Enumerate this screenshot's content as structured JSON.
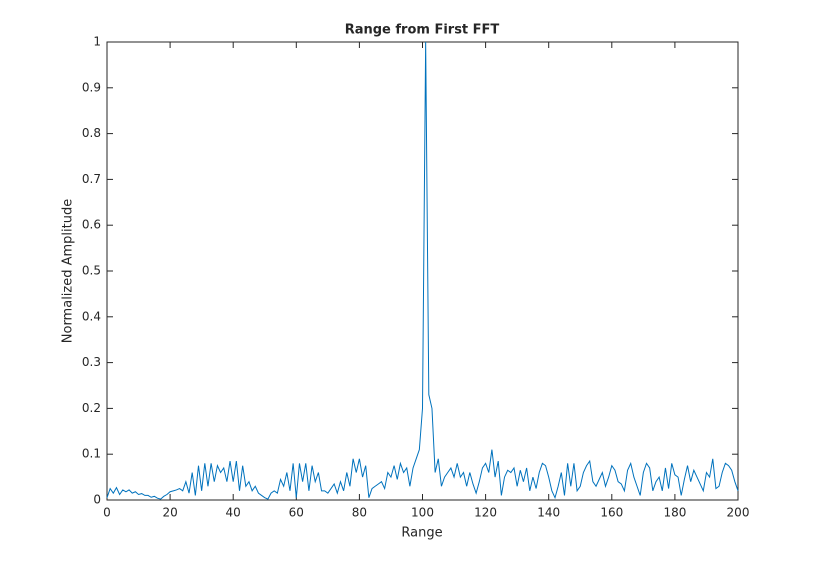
{
  "chart_data": {
    "type": "line",
    "title": "Range from First FFT",
    "x_label": "Range",
    "y_label": "Normalized Amplitude",
    "x": [
      0,
      1,
      2,
      3,
      4,
      5,
      6,
      7,
      8,
      9,
      10,
      11,
      12,
      13,
      14,
      15,
      16,
      17,
      18,
      19,
      20,
      21,
      22,
      23,
      24,
      25,
      26,
      27,
      28,
      29,
      30,
      31,
      32,
      33,
      34,
      35,
      36,
      37,
      38,
      39,
      40,
      41,
      42,
      43,
      44,
      45,
      46,
      47,
      48,
      49,
      50,
      51,
      52,
      53,
      54,
      55,
      56,
      57,
      58,
      59,
      60,
      61,
      62,
      63,
      64,
      65,
      66,
      67,
      68,
      69,
      70,
      71,
      72,
      73,
      74,
      75,
      76,
      77,
      78,
      79,
      80,
      81,
      82,
      83,
      84,
      85,
      86,
      87,
      88,
      89,
      90,
      91,
      92,
      93,
      94,
      95,
      96,
      97,
      98,
      99,
      100,
      101,
      102,
      103,
      104,
      105,
      106,
      107,
      108,
      109,
      110,
      111,
      112,
      113,
      114,
      115,
      116,
      117,
      118,
      119,
      120,
      121,
      122,
      123,
      124,
      125,
      126,
      127,
      128,
      129,
      130,
      131,
      132,
      133,
      134,
      135,
      136,
      137,
      138,
      139,
      140,
      141,
      142,
      143,
      144,
      145,
      146,
      147,
      148,
      149,
      150,
      151,
      152,
      153,
      154,
      155,
      156,
      157,
      158,
      159,
      160,
      161,
      162,
      163,
      164,
      165,
      166,
      167,
      168,
      169,
      170,
      171,
      172,
      173,
      174,
      175,
      176,
      177,
      178,
      179,
      180,
      181,
      182,
      183,
      184,
      185,
      186,
      187,
      188,
      189,
      190,
      191,
      192,
      193,
      194,
      195,
      196,
      197,
      198,
      199,
      200
    ],
    "series": [
      {
        "name": "Range",
        "color": "#0072bd",
        "values": [
          0.005,
          0.025,
          0.015,
          0.027,
          0.012,
          0.022,
          0.018,
          0.022,
          0.015,
          0.018,
          0.012,
          0.014,
          0.01,
          0.01,
          0.006,
          0.008,
          0.004,
          0.002,
          0.008,
          0.012,
          0.018,
          0.02,
          0.022,
          0.025,
          0.02,
          0.04,
          0.015,
          0.06,
          0.01,
          0.075,
          0.02,
          0.08,
          0.03,
          0.08,
          0.04,
          0.075,
          0.06,
          0.07,
          0.04,
          0.085,
          0.04,
          0.085,
          0.02,
          0.075,
          0.03,
          0.04,
          0.02,
          0.03,
          0.015,
          0.01,
          0.005,
          0.002,
          0.015,
          0.02,
          0.015,
          0.045,
          0.03,
          0.06,
          0.02,
          0.08,
          0.005,
          0.08,
          0.04,
          0.08,
          0.02,
          0.075,
          0.04,
          0.06,
          0.02,
          0.02,
          0.015,
          0.025,
          0.035,
          0.015,
          0.04,
          0.02,
          0.06,
          0.03,
          0.09,
          0.06,
          0.09,
          0.05,
          0.075,
          0.005,
          0.025,
          0.03,
          0.035,
          0.04,
          0.025,
          0.06,
          0.05,
          0.075,
          0.045,
          0.08,
          0.06,
          0.07,
          0.03,
          0.07,
          0.09,
          0.11,
          0.2,
          1.0,
          0.23,
          0.2,
          0.06,
          0.09,
          0.03,
          0.05,
          0.06,
          0.07,
          0.05,
          0.08,
          0.05,
          0.06,
          0.03,
          0.06,
          0.035,
          0.015,
          0.04,
          0.07,
          0.08,
          0.06,
          0.11,
          0.05,
          0.085,
          0.01,
          0.05,
          0.065,
          0.06,
          0.07,
          0.03,
          0.065,
          0.04,
          0.07,
          0.02,
          0.05,
          0.025,
          0.06,
          0.08,
          0.075,
          0.05,
          0.02,
          0.005,
          0.03,
          0.06,
          0.01,
          0.08,
          0.03,
          0.08,
          0.02,
          0.03,
          0.06,
          0.075,
          0.085,
          0.04,
          0.03,
          0.045,
          0.06,
          0.03,
          0.05,
          0.075,
          0.065,
          0.04,
          0.035,
          0.02,
          0.065,
          0.08,
          0.05,
          0.03,
          0.01,
          0.06,
          0.08,
          0.07,
          0.02,
          0.04,
          0.05,
          0.02,
          0.07,
          0.025,
          0.08,
          0.055,
          0.05,
          0.01,
          0.045,
          0.075,
          0.04,
          0.065,
          0.05,
          0.035,
          0.02,
          0.06,
          0.05,
          0.09,
          0.025,
          0.03,
          0.06,
          0.08,
          0.075,
          0.065,
          0.04,
          0.02
        ]
      }
    ],
    "xlim": [
      0,
      200
    ],
    "xticks": [
      0,
      20,
      40,
      60,
      80,
      100,
      120,
      140,
      160,
      180,
      200
    ],
    "ylim": [
      0,
      1
    ],
    "yticks": [
      0,
      0.1,
      0.2,
      0.3,
      0.4,
      0.5,
      0.6,
      0.7,
      0.8,
      0.9,
      1
    ]
  }
}
